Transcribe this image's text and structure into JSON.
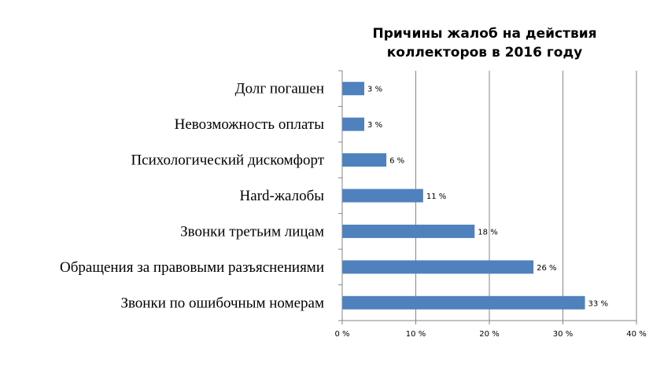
{
  "chart_data": {
    "type": "bar",
    "orientation": "horizontal",
    "title_lines": [
      "Причины жалоб на действия",
      "коллекторов в 2016 году"
    ],
    "categories": [
      "Долг погашен",
      "Невозможность оплаты",
      "Психологический дискомфорт",
      "Hard-жалобы",
      "Звонки третьим лицам",
      "Обращения за правовыми разъяснениями",
      "Звонки по ошибочным номерам"
    ],
    "values": [
      3,
      3,
      6,
      11,
      18,
      26,
      33
    ],
    "value_labels": [
      "3 %",
      "3 %",
      "6 %",
      "11 %",
      "18 %",
      "26 %",
      "33 %"
    ],
    "xlim": [
      0,
      40
    ],
    "x_ticks": [
      0,
      10,
      20,
      30,
      40
    ],
    "x_tick_labels": [
      "0 %",
      "10 %",
      "20 %",
      "30 %",
      "40 %"
    ],
    "grid": "vertical",
    "legend": "none",
    "bar_color": "#4f81bd",
    "grid_color": "#868686"
  }
}
